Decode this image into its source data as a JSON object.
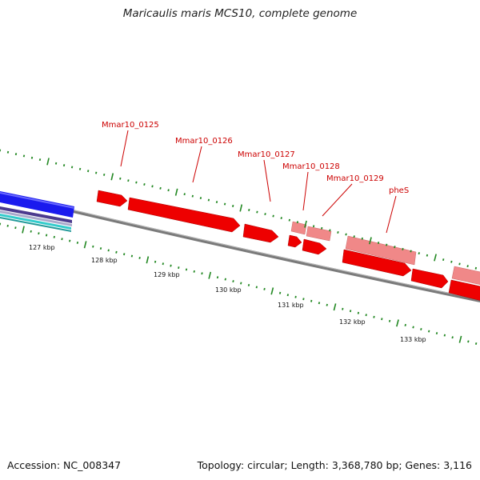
{
  "title": "Maricaulis maris MCS10, complete genome",
  "footer": {
    "accession": "Accession: NC_008347",
    "summary": "Topology: circular; Length: 3,368,780 bp; Genes: 3,116"
  },
  "colors": {
    "gene_forward": "#ee0000",
    "gene_light": "#f08888",
    "backbone": "#808080",
    "tick": "#228822",
    "label": "#cc0000",
    "blue_feature": "#1a1aee",
    "cyan_feature": "#33cccc"
  },
  "gene_labels": [
    "Mmar10_0125",
    "Mmar10_0126",
    "Mmar10_0127",
    "Mmar10_0128",
    "Mmar10_0129",
    "pheS"
  ],
  "kbp_labels": [
    "127 kbp",
    "128 kbp",
    "129 kbp",
    "130 kbp",
    "131 kbp",
    "132 kbp",
    "133 kbp"
  ]
}
